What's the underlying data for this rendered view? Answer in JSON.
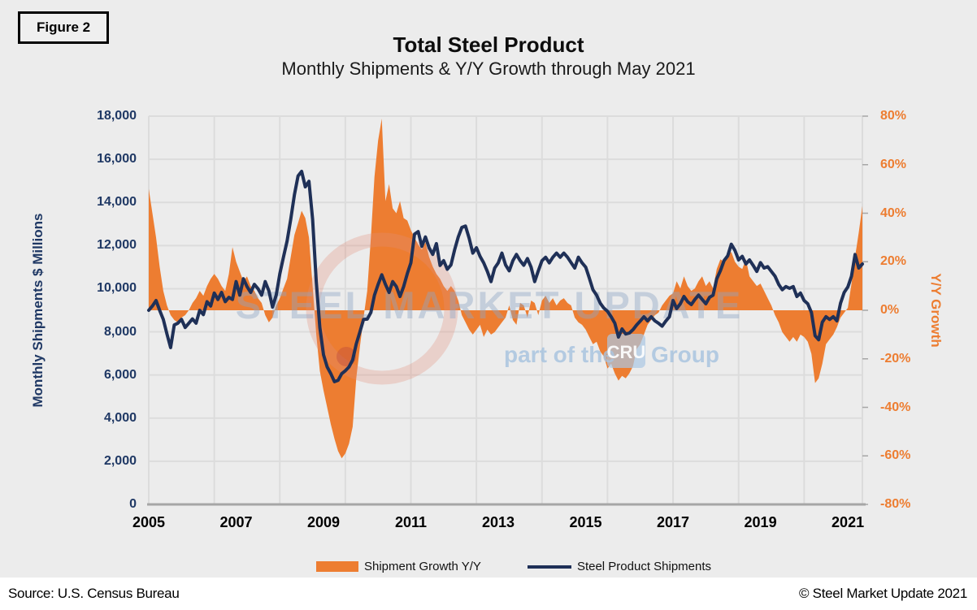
{
  "figure_label": "Figure 2",
  "title": "Total Steel Product",
  "subtitle": "Monthly Shipments & Y/Y Growth through May 2021",
  "source": "Source: U.S. Census Bureau",
  "copyright": "© Steel Market Update 2021",
  "watermark": {
    "line1": "STEEL MARKET UPDATE",
    "line2_prefix": "part of the",
    "line2_box": "CRU",
    "line2_suffix": "Group"
  },
  "colors": {
    "growth_area": "#ed7d31",
    "shipments_line": "#1f3057",
    "left_axis": "#1f3864",
    "right_axis": "#ed7d31",
    "gridline": "#dcdcdc",
    "axis_line": "#a6a6a6",
    "background": "#ececec"
  },
  "legend": [
    {
      "label": "Shipment Growth Y/Y",
      "type": "area",
      "color": "#ed7d31"
    },
    {
      "label": "Steel Product Shipments",
      "type": "line",
      "color": "#1f3057"
    }
  ],
  "axes": {
    "left": {
      "title": "Monthly Shipments $ Millions",
      "ticks": [
        "18,000",
        "16,000",
        "14,000",
        "12,000",
        "10,000",
        "8,000",
        "6,000",
        "4,000",
        "2,000",
        "0"
      ]
    },
    "right": {
      "title": "Y/Y Growth",
      "ticks": [
        "80%",
        "60%",
        "40%",
        "20%",
        "0%",
        "-20%",
        "-40%",
        "-60%",
        "-80%"
      ]
    },
    "x": {
      "ticks": [
        "2005",
        "2007",
        "2009",
        "2011",
        "2013",
        "2015",
        "2017",
        "2019",
        "2021"
      ]
    }
  },
  "chart_data": {
    "type": "combo",
    "frequency": "monthly",
    "x_start": "2005-01",
    "x_end": "2021-05",
    "grid": true,
    "legend_position": "bottom",
    "left_axis": {
      "label": "Monthly Shipments $ Millions",
      "min": 0,
      "max": 18000,
      "tick_step": 2000
    },
    "right_axis": {
      "label": "Y/Y Growth",
      "min": -80,
      "max": 80,
      "tick_step": 20
    },
    "x_gridline_interval_months": 18,
    "series": [
      {
        "name": "Shipment Growth Y/Y",
        "type": "area",
        "axis": "right",
        "unit": "%",
        "color": "#ed7d31",
        "values": [
          50,
          40,
          30,
          18,
          8,
          2,
          -2,
          -4,
          -5,
          -3,
          -2,
          0,
          3,
          5,
          8,
          6,
          10,
          13,
          15,
          13,
          10,
          8,
          15,
          26,
          20,
          16,
          12,
          14,
          10,
          8,
          5,
          3,
          -2,
          -5,
          -3,
          2,
          5,
          9,
          13,
          22,
          31,
          36,
          41,
          38,
          30,
          10,
          -10,
          -25,
          -33,
          -40,
          -47,
          -53,
          -58,
          -61,
          -59,
          -55,
          -48,
          -28,
          -15,
          -3,
          8,
          30,
          55,
          70,
          79,
          45,
          52,
          42,
          40,
          45,
          38,
          37,
          33,
          30,
          27,
          25,
          28,
          22,
          18,
          15,
          13,
          10,
          8,
          10,
          8,
          4,
          -2,
          -5,
          -8,
          -10,
          -8,
          -6,
          -11,
          -8,
          -10,
          -9,
          -7,
          -5,
          -3,
          2,
          -4,
          -6,
          3,
          2,
          -3,
          4,
          3,
          -2,
          4,
          6,
          3,
          5,
          2,
          4,
          5,
          3,
          2,
          -3,
          -5,
          -6,
          -8,
          -11,
          -14,
          -13,
          -17,
          -19,
          -24,
          -22,
          -26,
          -29,
          -27,
          -28,
          -26,
          -23,
          -16,
          -14,
          -10,
          -6,
          -4,
          -2,
          -1,
          2,
          4,
          6,
          7,
          12,
          9,
          14,
          10,
          8,
          9,
          12,
          14,
          10,
          12,
          9,
          17,
          21,
          20,
          23,
          24,
          20,
          18,
          17,
          21,
          14,
          12,
          10,
          11,
          8,
          5,
          2,
          -2,
          -5,
          -9,
          -11,
          -13,
          -11,
          -13,
          -10,
          -11,
          -13,
          -18,
          -30,
          -28,
          -22,
          -14,
          -12,
          -10,
          -7,
          -3,
          -1,
          1,
          11,
          22,
          32,
          43
        ]
      },
      {
        "name": "Steel Product Shipments",
        "type": "line",
        "axis": "left",
        "unit": "$M",
        "color": "#1f3057",
        "values": [
          9000,
          9200,
          9450,
          9000,
          8580,
          7900,
          7270,
          8320,
          8400,
          8580,
          8200,
          8400,
          8600,
          8400,
          9000,
          8800,
          9400,
          9200,
          9800,
          9500,
          9830,
          9400,
          9600,
          9500,
          10330,
          9705,
          10460,
          10100,
          9830,
          10200,
          10000,
          9700,
          10330,
          9900,
          9150,
          9700,
          10700,
          11460,
          12210,
          13220,
          14350,
          15230,
          15440,
          14725,
          14980,
          13220,
          10330,
          8200,
          6940,
          6375,
          6060,
          5690,
          5750,
          6060,
          6200,
          6375,
          6700,
          7440,
          8000,
          8580,
          8590,
          8900,
          9700,
          10200,
          10645,
          10200,
          9830,
          10330,
          10100,
          9640,
          10100,
          10700,
          11200,
          12530,
          12650,
          11965,
          12400,
          11900,
          11590,
          12090,
          11080,
          11300,
          10900,
          11100,
          11800,
          12400,
          12840,
          12905,
          12340,
          11650,
          11900,
          11500,
          11200,
          10800,
          10330,
          10960,
          11200,
          11650,
          11100,
          10830,
          11300,
          11590,
          11300,
          11085,
          11400,
          11000,
          10330,
          10830,
          11300,
          11460,
          11200,
          11460,
          11650,
          11460,
          11650,
          11460,
          11210,
          10960,
          11460,
          11200,
          11000,
          10500,
          9954,
          9700,
          9329,
          9100,
          8952,
          8700,
          8400,
          7758,
          8135,
          7900,
          7947,
          8100,
          8324,
          8500,
          8700,
          8512,
          8700,
          8512,
          8400,
          8261,
          8500,
          8700,
          9454,
          9078,
          9300,
          9642,
          9400,
          9265,
          9500,
          9705,
          9500,
          9300,
          9600,
          9700,
          10458,
          10835,
          11300,
          11524,
          12063,
          11776,
          11336,
          11500,
          11148,
          11336,
          11084,
          10800,
          11211,
          10959,
          11022,
          10800,
          10582,
          10200,
          9953,
          10100,
          10017,
          10100,
          9641,
          9800,
          9453,
          9300,
          8900,
          7822,
          7633,
          8449,
          8701,
          8575,
          8701,
          8512,
          9329,
          9830,
          10080,
          10582,
          11588,
          10960,
          11147
        ]
      }
    ]
  }
}
